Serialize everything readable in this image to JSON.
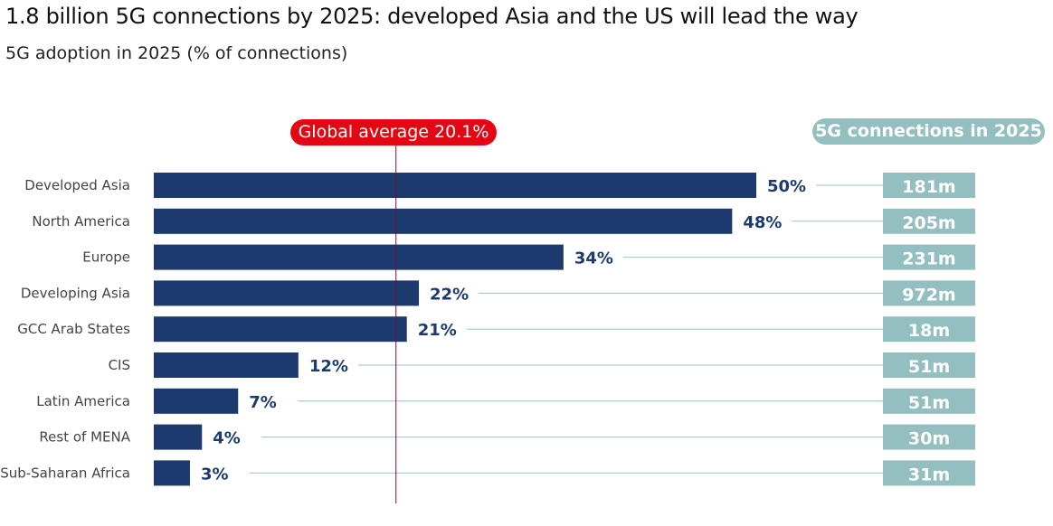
{
  "chart_data": {
    "type": "bar",
    "orientation": "horizontal",
    "title": "1.8 billion 5G connections by 2025: developed Asia and the US will lead the way",
    "subtitle": "5G adoption in 2025 (% of connections)",
    "categories": [
      "Developed Asia",
      "North America",
      "Europe",
      "Developing Asia",
      "GCC Arab States",
      "CIS",
      "Latin America",
      "Rest of MENA",
      "Sub-Saharan Africa"
    ],
    "values": [
      50,
      48,
      34,
      22,
      21,
      12,
      7,
      4,
      3
    ],
    "value_labels": [
      "50%",
      "48%",
      "34%",
      "22%",
      "21%",
      "12%",
      "7%",
      "4%",
      "3%"
    ],
    "reference_line": {
      "label": "Global average 20.1%",
      "value": 20.1
    },
    "side_column": {
      "header": "5G connections in 2025",
      "values": [
        "181m",
        "205m",
        "231m",
        "972m",
        "18m",
        "51m",
        "51m",
        "30m",
        "31m"
      ]
    },
    "xlim": [
      0,
      50
    ],
    "grid": false,
    "colors": {
      "bar": "#1c3a6e",
      "reference": "#e30613",
      "side": "#94bfc0",
      "connector": "#9bbfc2"
    }
  }
}
